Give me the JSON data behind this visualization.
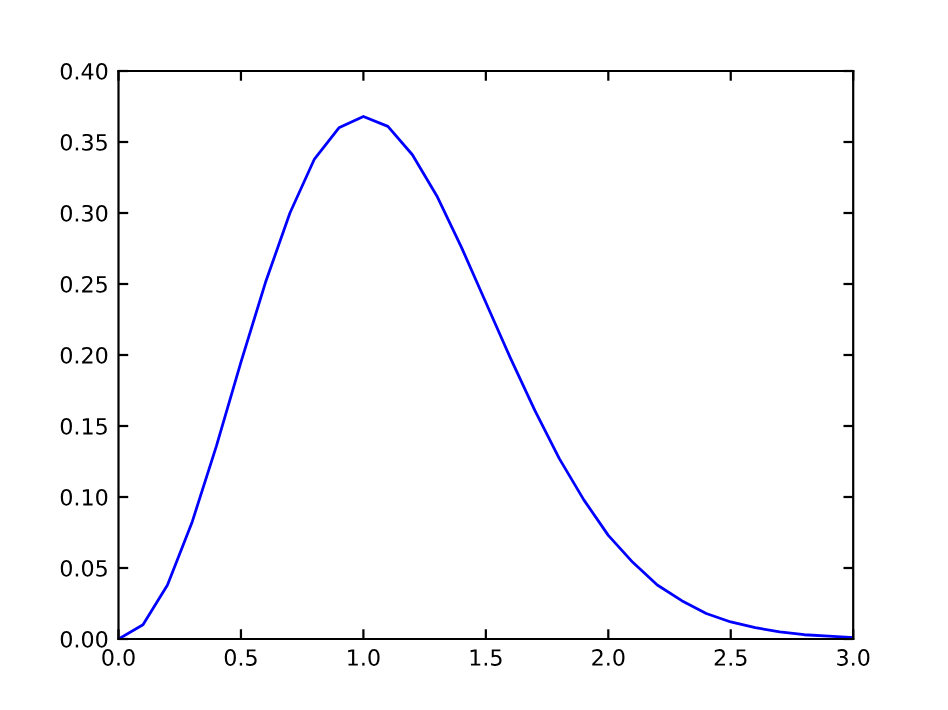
{
  "chart_data": {
    "type": "line",
    "x": [
      0,
      0.1,
      0.2,
      0.3,
      0.4,
      0.5,
      0.6,
      0.7,
      0.8,
      0.9,
      1.0,
      1.1,
      1.2,
      1.3,
      1.4,
      1.5,
      1.6,
      1.7,
      1.8,
      1.9,
      2.0,
      2.1,
      2.2,
      2.3,
      2.4,
      2.5,
      2.6,
      2.7,
      2.8,
      2.9,
      3.0
    ],
    "series": [
      {
        "color": "#0000ff",
        "values": [
          0,
          0.01,
          0.038,
          0.082,
          0.136,
          0.195,
          0.251,
          0.3,
          0.338,
          0.36,
          0.368,
          0.361,
          0.341,
          0.312,
          0.276,
          0.237,
          0.198,
          0.161,
          0.127,
          0.098,
          0.073,
          0.054,
          0.038,
          0.027,
          0.018,
          0.012,
          0.008,
          0.005,
          0.003,
          0.002,
          0.001
        ]
      }
    ],
    "xlim": [
      0,
      3
    ],
    "ylim": [
      0,
      0.4
    ],
    "xticks": [
      {
        "value": 0,
        "label": "0.0"
      },
      {
        "value": 0.5,
        "label": "0.5"
      },
      {
        "value": 1,
        "label": "1.0"
      },
      {
        "value": 1.5,
        "label": "1.5"
      },
      {
        "value": 2,
        "label": "2.0"
      },
      {
        "value": 2.5,
        "label": "2.5"
      },
      {
        "value": 3,
        "label": "3.0"
      }
    ],
    "yticks": [
      {
        "value": 0,
        "label": "0.00"
      },
      {
        "value": 0.05,
        "label": "0.05"
      },
      {
        "value": 0.1,
        "label": "0.10"
      },
      {
        "value": 0.15,
        "label": "0.15"
      },
      {
        "value": 0.2,
        "label": "0.20"
      },
      {
        "value": 0.25,
        "label": "0.25"
      },
      {
        "value": 0.3,
        "label": "0.30"
      },
      {
        "value": 0.35,
        "label": "0.35"
      },
      {
        "value": 0.4,
        "label": "0.40"
      }
    ],
    "grid": false,
    "legend": false,
    "marker": "none",
    "line_style": "solid"
  }
}
